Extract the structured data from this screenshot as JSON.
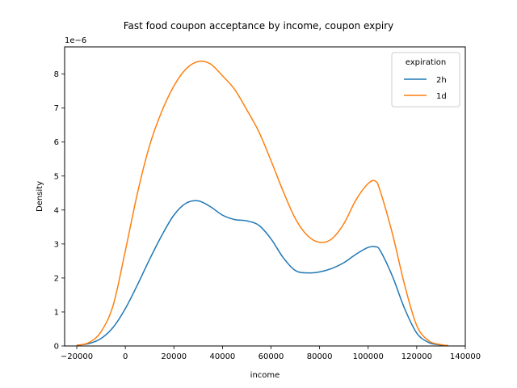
{
  "chart_data": {
    "type": "line",
    "title": "Fast food coupon acceptance by income, coupon expiry",
    "xlabel": "income",
    "ylabel": "Density",
    "y_offset_text": "1e−6",
    "xlim": [
      -25000,
      140000
    ],
    "ylim": [
      0,
      8.8
    ],
    "y_scale": 1e-06,
    "x_ticks": [
      -20000,
      0,
      20000,
      40000,
      60000,
      80000,
      100000,
      120000,
      140000
    ],
    "x_tick_labels": [
      "−20000",
      "0",
      "20000",
      "40000",
      "60000",
      "80000",
      "100000",
      "120000",
      "140000"
    ],
    "y_ticks": [
      0,
      1,
      2,
      3,
      4,
      5,
      6,
      7,
      8
    ],
    "y_tick_labels": [
      "0",
      "1",
      "2",
      "3",
      "4",
      "5",
      "6",
      "7",
      "8"
    ],
    "grid": false,
    "legend": {
      "title": "expiration",
      "placement": "top-right"
    },
    "series": [
      {
        "name": "2h",
        "color": "#1f77b4",
        "x": [
          -20000,
          -15000,
          -10000,
          -5000,
          0,
          5000,
          10000,
          15000,
          20000,
          25000,
          30000,
          35000,
          40000,
          45000,
          50000,
          55000,
          60000,
          65000,
          70000,
          75000,
          80000,
          85000,
          90000,
          95000,
          100000,
          103000,
          105000,
          110000,
          115000,
          120000,
          125000,
          130000,
          133000
        ],
        "y": [
          0.02,
          0.07,
          0.22,
          0.55,
          1.1,
          1.8,
          2.55,
          3.25,
          3.85,
          4.2,
          4.27,
          4.1,
          3.85,
          3.72,
          3.68,
          3.55,
          3.15,
          2.6,
          2.22,
          2.15,
          2.18,
          2.28,
          2.45,
          2.7,
          2.9,
          2.92,
          2.8,
          2.05,
          1.1,
          0.38,
          0.1,
          0.03,
          0.01
        ]
      },
      {
        "name": "1d",
        "color": "#ff7f0e",
        "x": [
          -20000,
          -15000,
          -10000,
          -5000,
          0,
          5000,
          10000,
          15000,
          20000,
          25000,
          30000,
          35000,
          40000,
          45000,
          50000,
          55000,
          60000,
          65000,
          70000,
          75000,
          80000,
          85000,
          90000,
          95000,
          100000,
          103000,
          105000,
          110000,
          115000,
          120000,
          125000,
          130000,
          133000
        ],
        "y": [
          0.02,
          0.1,
          0.42,
          1.2,
          2.8,
          4.5,
          5.9,
          6.9,
          7.65,
          8.15,
          8.37,
          8.3,
          7.95,
          7.55,
          6.95,
          6.3,
          5.45,
          4.55,
          3.75,
          3.25,
          3.05,
          3.15,
          3.6,
          4.3,
          4.78,
          4.85,
          4.55,
          3.3,
          1.8,
          0.6,
          0.15,
          0.04,
          0.01
        ]
      }
    ]
  }
}
